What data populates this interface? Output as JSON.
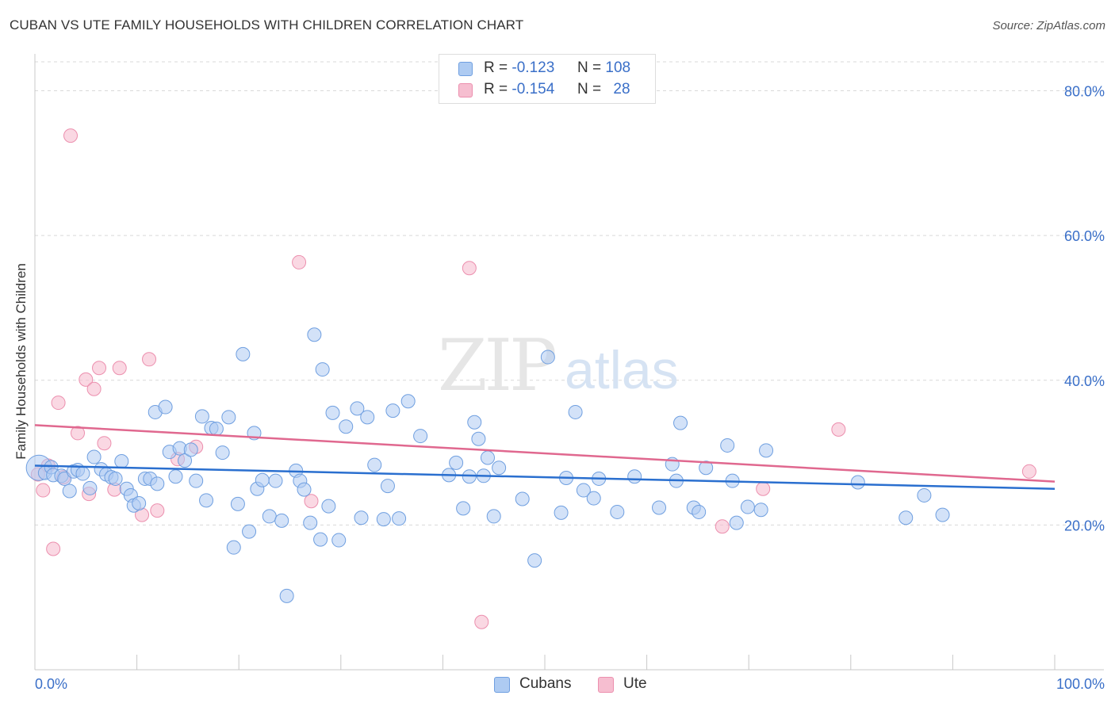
{
  "title": "CUBAN VS UTE FAMILY HOUSEHOLDS WITH CHILDREN CORRELATION CHART",
  "source": "Source: ZipAtlas.com",
  "watermark": {
    "zip": "ZIP",
    "atlas": "atlas"
  },
  "legend": {
    "rows": [
      {
        "r_label": "R =",
        "r_value": "-0.123",
        "n_label": "N =",
        "n_value": "108"
      },
      {
        "r_label": "R =",
        "r_value": "-0.154",
        "n_label": "N =",
        "n_value": "28"
      }
    ]
  },
  "colors": {
    "cubans_fill": "#aecbf2",
    "cubans_stroke": "#6f9fe0",
    "cubans_line": "#2a6fcf",
    "ute_fill": "#f6bed0",
    "ute_stroke": "#ec8fae",
    "ute_line": "#e0688f",
    "tick_label": "#3a6fc8",
    "grid": "#d9d9d9"
  },
  "chart_data": {
    "type": "scatter",
    "title": "CUBAN VS UTE FAMILY HOUSEHOLDS WITH CHILDREN CORRELATION CHART",
    "xlabel": "",
    "ylabel": "Family Households with Children",
    "xlim": [
      0,
      100
    ],
    "ylim": [
      0,
      84
    ],
    "x_tick_labels": [
      "0.0%",
      "100.0%"
    ],
    "y_ticks": [
      20,
      40,
      60,
      80
    ],
    "y_tick_labels": [
      "20.0%",
      "40.0%",
      "60.0%",
      "80.0%"
    ],
    "grid": true,
    "legend_position": "top-center",
    "series": [
      {
        "name": "Cubans",
        "r": -0.123,
        "n": 108,
        "trend": {
          "x": [
            0,
            100
          ],
          "y": [
            28.2,
            25.0
          ]
        },
        "points": [
          [
            0.4,
            27.9
          ],
          [
            1.0,
            27.2
          ],
          [
            1.6,
            28.0
          ],
          [
            1.8,
            26.9
          ],
          [
            2.6,
            26.8
          ],
          [
            2.9,
            26.4
          ],
          [
            3.4,
            24.7
          ],
          [
            3.8,
            27.4
          ],
          [
            4.2,
            27.6
          ],
          [
            4.7,
            27.1
          ],
          [
            5.4,
            25.1
          ],
          [
            5.8,
            29.4
          ],
          [
            6.5,
            27.7
          ],
          [
            7.0,
            27.0
          ],
          [
            7.5,
            26.6
          ],
          [
            7.9,
            26.4
          ],
          [
            8.5,
            28.8
          ],
          [
            9.0,
            25.0
          ],
          [
            9.4,
            24.1
          ],
          [
            9.7,
            22.7
          ],
          [
            10.2,
            23.0
          ],
          [
            10.8,
            26.4
          ],
          [
            11.3,
            26.4
          ],
          [
            11.8,
            35.6
          ],
          [
            12.0,
            25.7
          ],
          [
            12.8,
            36.3
          ],
          [
            13.2,
            30.1
          ],
          [
            13.8,
            26.7
          ],
          [
            14.2,
            30.6
          ],
          [
            14.7,
            28.9
          ],
          [
            15.3,
            30.4
          ],
          [
            15.8,
            26.1
          ],
          [
            16.4,
            35.0
          ],
          [
            16.8,
            23.4
          ],
          [
            17.3,
            33.4
          ],
          [
            17.8,
            33.3
          ],
          [
            18.4,
            30.0
          ],
          [
            19.0,
            34.9
          ],
          [
            19.5,
            16.9
          ],
          [
            19.9,
            22.9
          ],
          [
            20.4,
            43.6
          ],
          [
            21.0,
            19.1
          ],
          [
            21.5,
            32.7
          ],
          [
            21.8,
            25.0
          ],
          [
            22.3,
            26.2
          ],
          [
            23.0,
            21.2
          ],
          [
            23.6,
            26.1
          ],
          [
            24.2,
            20.6
          ],
          [
            24.7,
            10.2
          ],
          [
            25.6,
            27.5
          ],
          [
            26.0,
            26.1
          ],
          [
            26.4,
            24.9
          ],
          [
            27.0,
            20.3
          ],
          [
            27.4,
            46.3
          ],
          [
            28.0,
            18.0
          ],
          [
            28.2,
            41.5
          ],
          [
            28.8,
            22.6
          ],
          [
            29.2,
            35.5
          ],
          [
            29.8,
            17.9
          ],
          [
            30.5,
            33.6
          ],
          [
            31.6,
            36.1
          ],
          [
            32.0,
            21.0
          ],
          [
            32.6,
            34.9
          ],
          [
            33.3,
            28.3
          ],
          [
            34.2,
            20.8
          ],
          [
            34.6,
            25.4
          ],
          [
            35.1,
            35.8
          ],
          [
            35.7,
            20.9
          ],
          [
            36.6,
            37.1
          ],
          [
            37.8,
            32.3
          ],
          [
            40.6,
            26.9
          ],
          [
            41.3,
            28.6
          ],
          [
            42.0,
            22.3
          ],
          [
            42.6,
            26.7
          ],
          [
            43.1,
            34.2
          ],
          [
            43.5,
            31.9
          ],
          [
            44.0,
            26.8
          ],
          [
            44.4,
            29.3
          ],
          [
            45.0,
            21.2
          ],
          [
            45.5,
            27.9
          ],
          [
            47.8,
            23.6
          ],
          [
            49.0,
            15.1
          ],
          [
            50.3,
            43.2
          ],
          [
            51.6,
            21.7
          ],
          [
            52.1,
            26.5
          ],
          [
            53.0,
            35.6
          ],
          [
            53.8,
            24.8
          ],
          [
            54.8,
            23.7
          ],
          [
            55.3,
            26.4
          ],
          [
            57.1,
            21.8
          ],
          [
            58.8,
            26.7
          ],
          [
            61.2,
            22.4
          ],
          [
            62.5,
            28.4
          ],
          [
            62.9,
            26.1
          ],
          [
            63.3,
            34.1
          ],
          [
            64.6,
            22.4
          ],
          [
            65.1,
            21.8
          ],
          [
            65.8,
            27.9
          ],
          [
            67.9,
            31.0
          ],
          [
            68.4,
            26.1
          ],
          [
            68.8,
            20.3
          ],
          [
            69.9,
            22.5
          ],
          [
            71.2,
            22.1
          ],
          [
            71.7,
            30.3
          ],
          [
            80.7,
            25.9
          ],
          [
            85.4,
            21.0
          ],
          [
            87.2,
            24.1
          ],
          [
            89.0,
            21.4
          ]
        ]
      },
      {
        "name": "Ute",
        "r": -0.154,
        "n": 28,
        "trend": {
          "x": [
            0,
            100
          ],
          "y": [
            33.8,
            26.0
          ]
        },
        "points": [
          [
            0.3,
            27.0
          ],
          [
            0.8,
            24.8
          ],
          [
            1.3,
            28.2
          ],
          [
            1.8,
            16.7
          ],
          [
            2.3,
            36.9
          ],
          [
            2.8,
            26.6
          ],
          [
            3.5,
            73.8
          ],
          [
            4.2,
            32.7
          ],
          [
            5.0,
            40.1
          ],
          [
            5.3,
            24.3
          ],
          [
            5.8,
            38.8
          ],
          [
            6.3,
            41.7
          ],
          [
            6.8,
            31.3
          ],
          [
            7.8,
            24.9
          ],
          [
            8.3,
            41.7
          ],
          [
            10.5,
            21.4
          ],
          [
            11.2,
            42.9
          ],
          [
            12.0,
            22.0
          ],
          [
            14.0,
            29.1
          ],
          [
            15.8,
            30.8
          ],
          [
            25.9,
            56.3
          ],
          [
            27.1,
            23.3
          ],
          [
            42.6,
            55.5
          ],
          [
            43.8,
            6.6
          ],
          [
            67.4,
            19.8
          ],
          [
            71.4,
            25.0
          ],
          [
            78.8,
            33.2
          ],
          [
            97.5,
            27.4
          ]
        ]
      }
    ]
  },
  "bottom_legend": [
    {
      "label": "Cubans"
    },
    {
      "label": "Ute"
    }
  ]
}
